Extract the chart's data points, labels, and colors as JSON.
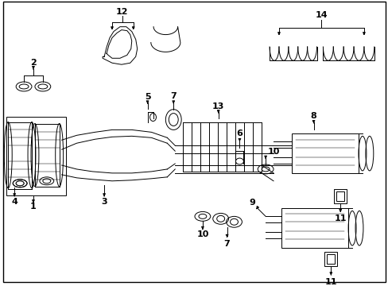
{
  "bg_color": "#ffffff",
  "line_color": "#000000",
  "fig_width": 4.89,
  "fig_height": 3.6,
  "dpi": 100,
  "lw": 0.7,
  "fs": 8
}
